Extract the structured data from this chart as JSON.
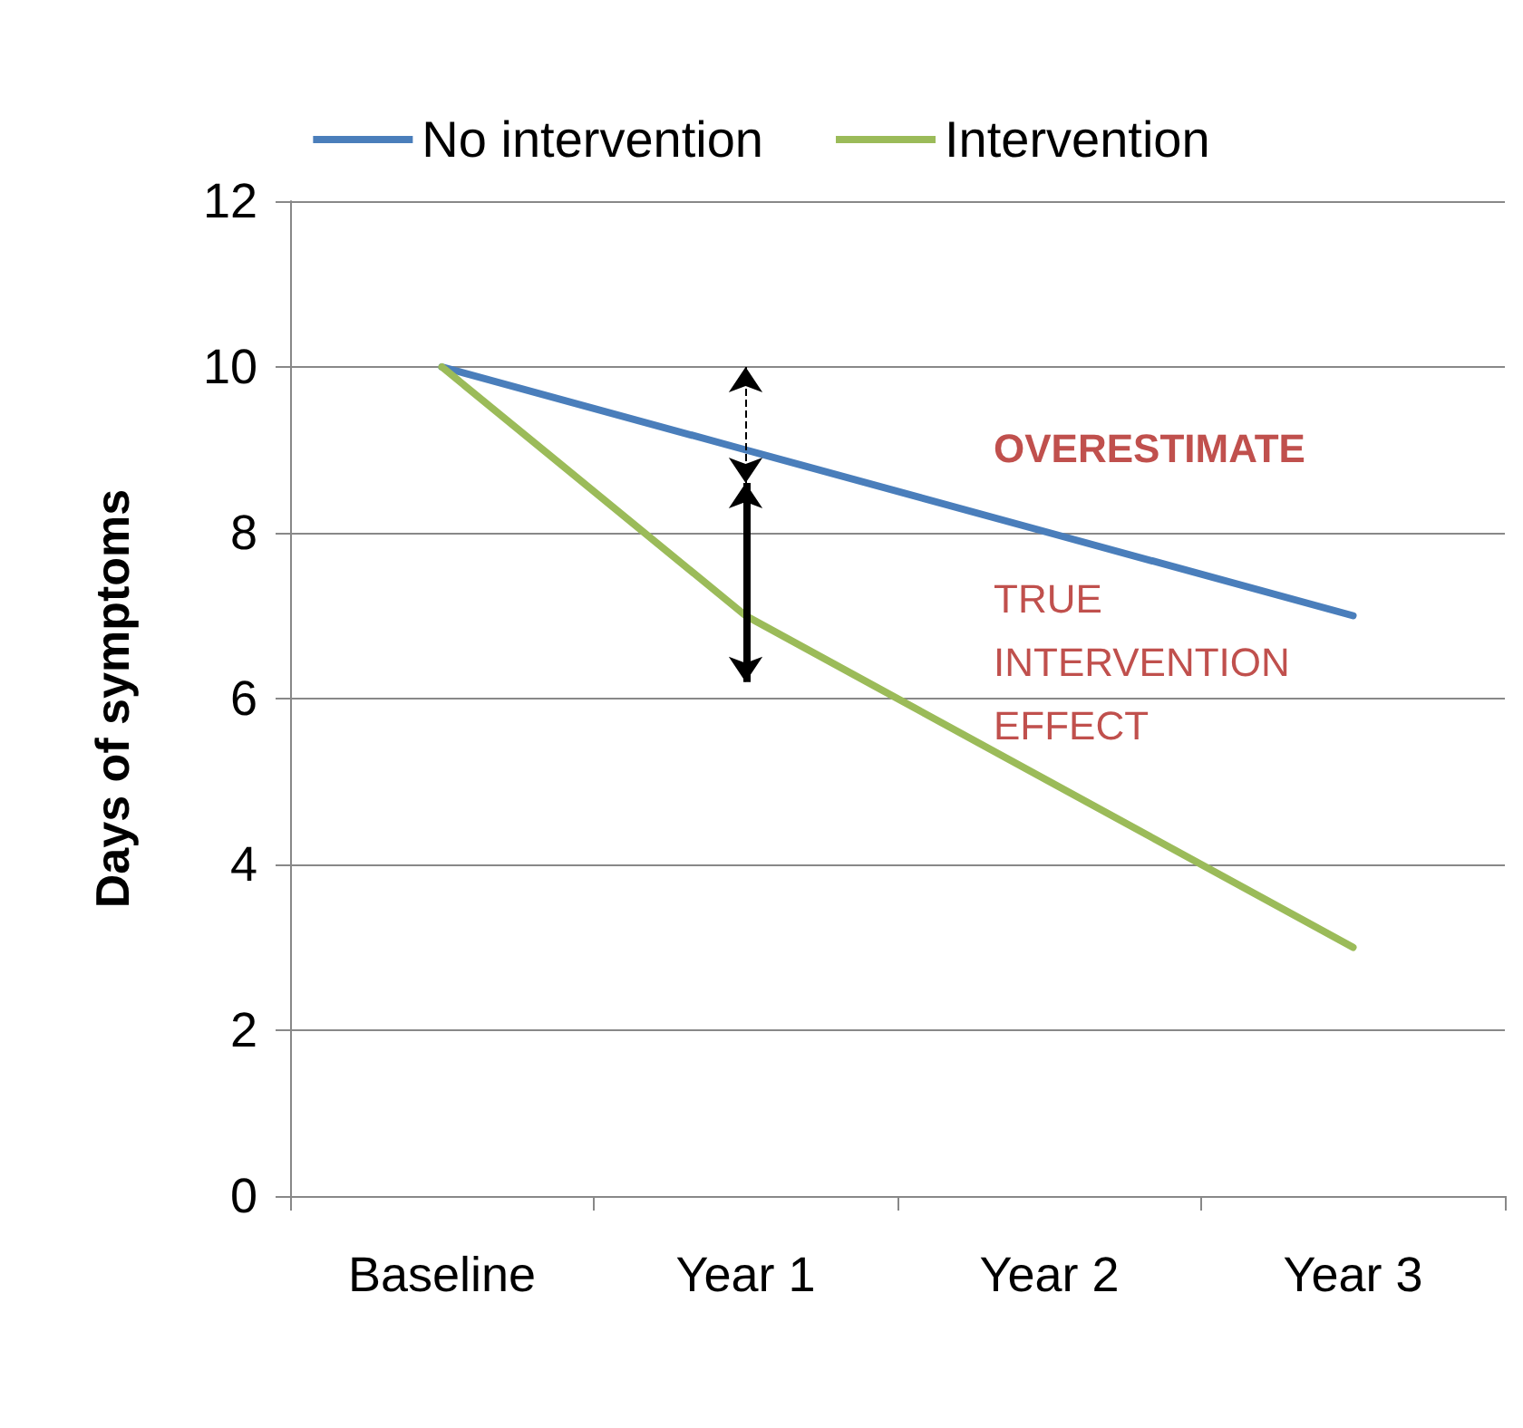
{
  "chart_data": {
    "type": "line",
    "ylabel": "Days of symptoms",
    "categories": [
      "Baseline",
      "Year 1",
      "Year 2",
      "Year 3"
    ],
    "series": [
      {
        "name": "No intervention",
        "color": "#4a7ebb",
        "values": [
          10,
          9,
          8,
          7
        ]
      },
      {
        "name": "Intervention",
        "color": "#9bbb59",
        "values": [
          10,
          7,
          5,
          3
        ]
      }
    ],
    "ylim": [
      0,
      12
    ],
    "yticks": [
      0,
      2,
      4,
      6,
      8,
      10,
      12
    ],
    "grid": "y",
    "legend": "top",
    "marker": "none",
    "line_style": "solid",
    "annotations": [
      "OVERESTIMATE",
      "TRUE\nINTERVENTION\nEFFECT"
    ]
  }
}
